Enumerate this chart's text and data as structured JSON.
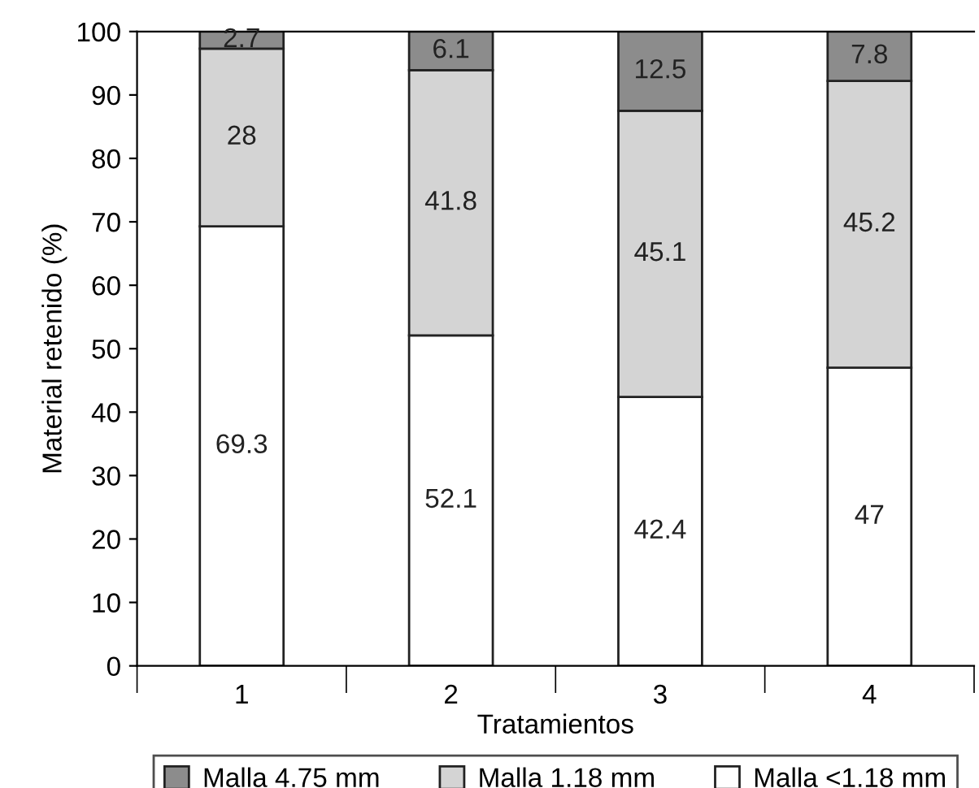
{
  "chart_data": {
    "type": "bar",
    "stacked": true,
    "xlabel": "Tratamientos",
    "ylabel": "Material retenido (%)",
    "categories": [
      "1",
      "2",
      "3",
      "4"
    ],
    "series": [
      {
        "name": "Malla <1.18 mm",
        "color": "#ffffff",
        "values": [
          69.3,
          52.1,
          42.4,
          47
        ]
      },
      {
        "name": "Malla 1.18 mm",
        "color": "#d4d4d4",
        "values": [
          28,
          41.8,
          45.1,
          45.2
        ]
      },
      {
        "name": "Malla 4.75 mm",
        "color": "#8c8c8c",
        "values": [
          2.7,
          6.1,
          12.5,
          7.8
        ]
      }
    ],
    "ylim": [
      0,
      100
    ],
    "yticks": [
      0,
      10,
      20,
      30,
      40,
      50,
      60,
      70,
      80,
      90,
      100
    ],
    "data_labels": true,
    "legend": "bottom",
    "grid": false
  }
}
